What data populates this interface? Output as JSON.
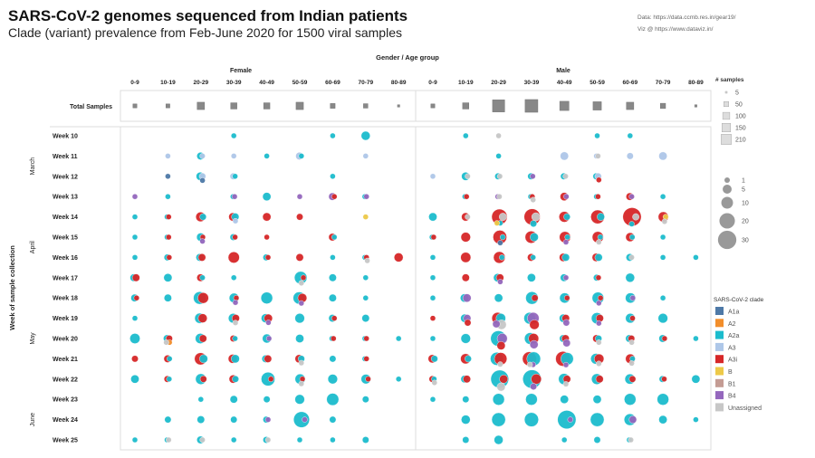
{
  "header": {
    "title": "SARS-CoV-2 genomes sequenced from Indian patients",
    "subtitle": "Clade (variant) prevalence from Feb-June 2020 for 1500 viral samples",
    "data_credit": "Data: https://data.ccmb.res.in/gear19/",
    "viz_credit": "Viz @ https://www.dataviz.in/"
  },
  "chart_data": {
    "type": "scatter",
    "x_title": "Gender  /  Age group",
    "y_title": "Week of sample collection",
    "genders": [
      "Female",
      "Male"
    ],
    "age_groups": [
      "0-9",
      "10-19",
      "20-29",
      "30-39",
      "40-49",
      "50-59",
      "60-69",
      "70-79",
      "80-89"
    ],
    "weeks": [
      "Week 10",
      "Week 11",
      "Week 12",
      "Week 13",
      "Week 14",
      "Week 15",
      "Week 16",
      "Week 17",
      "Week 18",
      "Week 19",
      "Week 20",
      "Week 21",
      "Week 22",
      "Week 23",
      "Week 24",
      "Week 25"
    ],
    "months": [
      {
        "label": "March",
        "weeks": [
          10,
          13
        ]
      },
      {
        "label": "April",
        "weeks": [
          14,
          17
        ]
      },
      {
        "label": "May",
        "weeks": [
          18,
          22
        ]
      },
      {
        "label": "June",
        "weeks": [
          23,
          25
        ]
      }
    ],
    "total_samples_label": "Total Samples",
    "total_samples": {
      "Female": [
        20,
        20,
        70,
        50,
        50,
        70,
        30,
        25,
        5
      ],
      "Male": [
        20,
        50,
        190,
        210,
        110,
        90,
        70,
        35,
        5
      ]
    },
    "size_legend_title": "# samples",
    "square_legend": [
      5,
      50,
      100,
      150,
      210
    ],
    "circle_legend": [
      1,
      5,
      10,
      20,
      30
    ],
    "clade_legend_title": "SARS-CoV-2 clade",
    "clades": [
      {
        "code": "D",
        "name": "A1a",
        "color": "#4e79a7"
      },
      {
        "code": "O",
        "name": "A2",
        "color": "#f28e2b"
      },
      {
        "code": "A",
        "name": "A2a",
        "color": "#1cbccd"
      },
      {
        "code": "L",
        "name": "A3",
        "color": "#aec7e8"
      },
      {
        "code": "R",
        "name": "A3i",
        "color": "#d62728"
      },
      {
        "code": "Y",
        "name": "B",
        "color": "#edc948"
      },
      {
        "code": "K",
        "name": "B1",
        "color": "#c49c94"
      },
      {
        "code": "P",
        "name": "B4",
        "color": "#9467bd"
      },
      {
        "code": "U",
        "name": "Unassigned",
        "color": "#c7c7c7"
      }
    ],
    "note": "counts per cell: week -> list of 'column:clade:count' where column 0-8 = Female age groups, 9-17 = Male age groups",
    "counts": {
      "Week 10": [
        "3:A:1",
        "6:A:1",
        "7:A:5",
        "10:A:1",
        "11:U:1",
        "14:A:1",
        "15:A:1"
      ],
      "Week 11": [
        "1:L:1",
        "2:A:3",
        "2:L:1",
        "3:L:1",
        "4:A:1",
        "5:A:1",
        "5:L:3",
        "7:L:1",
        "11:A:1",
        "13:L:4",
        "14:L:1",
        "14:U:1",
        "15:L:2",
        "16:L:4"
      ],
      "Week 12": [
        "1:D:1",
        "2:A:4",
        "2:D:1",
        "2:L:2",
        "3:A:1",
        "3:L:2",
        "6:A:1",
        "9:L:1",
        "10:A:4",
        "10:U:1",
        "11:A:2",
        "11:U:1",
        "12:A:2",
        "12:P:1",
        "13:A:2",
        "13:U:1",
        "14:A:2",
        "14:L:2",
        "14:R:1"
      ],
      "Week 13": [
        "0:P:1",
        "1:A:1",
        "3:A:1",
        "3:P:1",
        "4:A:4",
        "5:P:1",
        "6:R:1",
        "6:P:3",
        "7:A:1",
        "7:P:1",
        "10:A:1",
        "10:R:1",
        "11:P:1",
        "11:U:1",
        "12:A:1",
        "12:R:1",
        "12:U:1",
        "13:R:4",
        "13:P:1",
        "14:A:1",
        "14:R:1",
        "15:R:3",
        "15:P:1",
        "16:A:1"
      ],
      "Week 14": [
        "0:A:1",
        "1:A:1",
        "1:R:1",
        "2:A:2",
        "2:R:6",
        "3:A:3",
        "3:R:4",
        "3:L:1",
        "4:R:4",
        "5:R:2",
        "7:Y:1",
        "9:A:4",
        "10:R:4",
        "10:U:1",
        "11:R:20",
        "11:A:1",
        "11:U:3",
        "11:Y:1",
        "12:R:22",
        "12:A:2",
        "12:U:4",
        "13:A:2",
        "13:R:8",
        "14:A:3",
        "14:R:15",
        "15:R:30",
        "15:A:1",
        "15:U:2",
        "16:R:7",
        "16:Y:1",
        "16:U:1"
      ],
      "Week 15": [
        "0:A:1",
        "1:A:1",
        "1:R:1",
        "2:A:4",
        "2:R:1",
        "2:P:1",
        "3:A:2",
        "3:R:1",
        "4:R:1",
        "6:A:1",
        "6:R:3",
        "9:A:1",
        "9:R:1",
        "10:R:6",
        "11:R:15",
        "11:A:1",
        "11:D:1",
        "12:A:4",
        "12:R:11",
        "13:A:1",
        "13:R:9",
        "13:P:1",
        "14:A:1",
        "14:R:9",
        "14:U:1",
        "15:A:1",
        "15:R:5",
        "16:A:1"
      ],
      "Week 16": [
        "0:A:1",
        "1:A:2",
        "1:R:1",
        "2:A:3",
        "2:R:3",
        "3:R:9",
        "4:A:2",
        "4:R:1",
        "5:R:3",
        "6:A:1",
        "7:A:1",
        "7:R:1",
        "7:U:1",
        "8:R:5",
        "9:A:1",
        "10:R:7",
        "11:A:1",
        "11:R:10",
        "12:A:1",
        "12:R:3",
        "13:A:3",
        "13:R:4",
        "14:A:3",
        "14:R:4",
        "15:A:3",
        "15:U:1",
        "16:A:1",
        "17:A:1"
      ],
      "Week 17": [
        "0:A:3",
        "0:R:3",
        "1:A:4",
        "2:A:1",
        "2:R:3",
        "3:A:1",
        "5:A:12",
        "5:R:1",
        "5:U:1",
        "6:A:3",
        "7:A:1",
        "9:A:1",
        "10:R:3",
        "11:A:4",
        "11:R:3",
        "11:P:1",
        "12:A:4",
        "13:A:3",
        "13:P:1",
        "14:A:2",
        "14:R:1",
        "15:A:5"
      ],
      "Week 18": [
        "0:A:3",
        "0:R:1",
        "1:A:3",
        "2:A:12",
        "2:R:8",
        "3:A:6",
        "3:R:1",
        "3:P:1",
        "4:A:10",
        "5:A:11",
        "5:R:5",
        "5:P:1",
        "6:A:3",
        "7:A:1",
        "9:A:1",
        "10:A:4",
        "10:P:4",
        "11:A:4",
        "12:A:12",
        "12:R:2",
        "13:A:7",
        "13:R:1",
        "14:A:10",
        "14:R:1",
        "14:P:1",
        "15:A:7",
        "15:P:1",
        "16:A:1"
      ],
      "Week 19": [
        "0:A:1",
        "2:A:7",
        "2:R:5",
        "3:A:6",
        "3:R:3",
        "3:U:1",
        "4:A:5",
        "4:R:4",
        "4:P:1",
        "5:A:6",
        "6:A:3",
        "6:R:1",
        "7:A:3",
        "9:R:1",
        "10:A:4",
        "10:R:2",
        "10:P:3",
        "11:A:6",
        "11:R:10",
        "11:U:6",
        "11:P:3",
        "12:A:10",
        "12:R:6",
        "12:P:10",
        "13:A:4",
        "13:R:3",
        "13:P:2",
        "14:A:9",
        "14:R:3",
        "14:P:1",
        "15:A:6",
        "15:R:1",
        "16:A:6"
      ],
      "Week 20": [
        "0:A:7",
        "1:A:3",
        "1:R:2",
        "1:O:1",
        "1:U:1",
        "2:A:7",
        "2:R:3",
        "3:A:1",
        "3:R:2",
        "4:A:5",
        "4:P:1",
        "5:A:4",
        "6:A:1",
        "6:R:1",
        "7:A:1",
        "7:R:1",
        "8:A:1",
        "9:A:1",
        "10:A:6",
        "11:A:20",
        "11:R:4",
        "11:P:7",
        "12:A:10",
        "12:R:7",
        "12:P:4",
        "13:A:3",
        "13:R:3",
        "13:P:3",
        "14:A:2",
        "14:R:3",
        "14:U:1",
        "15:A:3",
        "15:R:2",
        "15:U:1",
        "16:A:3",
        "16:R:1",
        "17:A:1"
      ],
      "Week 21": [
        "0:R:2",
        "1:A:1",
        "1:R:3",
        "2:A:4",
        "2:R:11",
        "3:A:4",
        "3:R:5",
        "4:A:3",
        "4:R:3",
        "5:A:2",
        "5:R:4",
        "5:U:1",
        "6:A:2",
        "7:A:1",
        "7:R:1",
        "9:A:2",
        "9:R:4",
        "10:A:2",
        "10:R:7",
        "11:A:13",
        "11:R:12",
        "11:U:1",
        "12:A:15",
        "12:R:16",
        "12:P:1",
        "12:U:1",
        "13:A:12",
        "13:R:18",
        "13:P:1",
        "14:A:8",
        "14:R:6",
        "14:U:1",
        "15:A:1",
        "15:R:6",
        "15:U:1"
      ],
      "Week 22": [
        "0:A:4",
        "1:A:1",
        "1:R:2",
        "2:A:8",
        "2:R:2",
        "3:A:2",
        "3:R:4",
        "4:A:15",
        "4:R:1",
        "5:A:7",
        "5:R:1",
        "5:U:1",
        "6:A:6",
        "7:A:6",
        "7:R:1",
        "8:A:1",
        "9:A:1",
        "9:R:2",
        "9:U:1",
        "10:A:3",
        "10:R:3",
        "11:A:28",
        "11:R:4",
        "11:U:4",
        "12:A:30",
        "12:R:7",
        "12:P:2",
        "13:A:9",
        "13:R:3",
        "13:U:1",
        "14:A:8",
        "14:R:3",
        "15:A:7",
        "15:R:2",
        "16:A:2",
        "16:R:1",
        "17:A:4"
      ],
      "Week 23": [
        "2:A:1",
        "3:A:3",
        "4:A:2",
        "5:A:6",
        "6:A:11",
        "7:A:2",
        "9:A:1",
        "10:A:2",
        "11:A:10",
        "12:A:10",
        "13:A:4",
        "14:A:4",
        "15:A:10",
        "16:A:10"
      ],
      "Week 24": [
        "1:A:2",
        "2:A:3",
        "3:A:2",
        "4:A:2",
        "4:P:1",
        "5:A:21",
        "5:P:1",
        "6:A:2",
        "10:A:5",
        "11:A:15",
        "12:A:16",
        "13:A:30",
        "13:P:1",
        "14:A:15",
        "15:A:10",
        "15:P:3",
        "16:A:4",
        "17:A:1"
      ],
      "Week 25": [
        "0:A:1",
        "1:A:1",
        "1:U:1",
        "2:A:3",
        "2:U:1",
        "3:A:1",
        "4:A:2",
        "4:U:1",
        "5:A:1",
        "6:A:1",
        "7:A:2",
        "10:A:2",
        "11:A:5",
        "13:A:1",
        "14:A:2",
        "15:A:1",
        "15:U:1"
      ]
    }
  }
}
